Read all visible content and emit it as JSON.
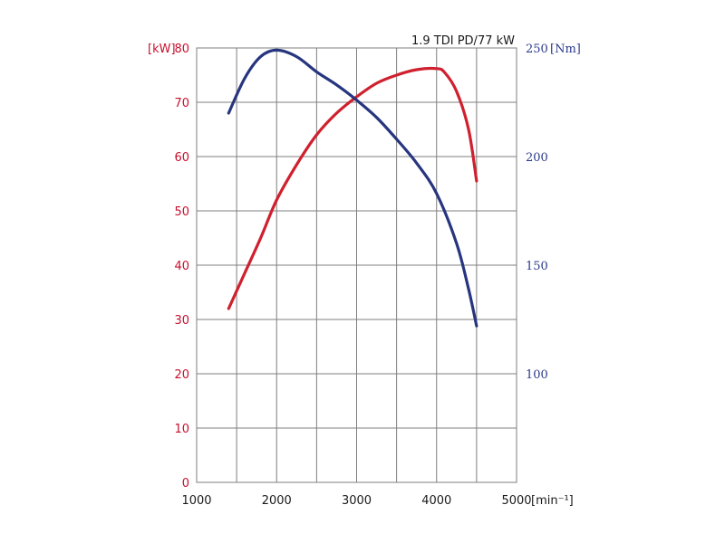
{
  "chart_data": {
    "type": "line",
    "title": "1.9 TDI PD/77 kW",
    "xlabel": "",
    "x_unit": "[min⁻¹]",
    "xlim": [
      1000,
      5000
    ],
    "x_ticks": [
      "1000",
      "2000",
      "3000",
      "4000",
      "5000"
    ],
    "ylim": [
      0,
      80
    ],
    "y_unit": "[kW]",
    "y_ticks": [
      "0",
      "10",
      "20",
      "30",
      "40",
      "50",
      "60",
      "70",
      "80"
    ],
    "y2lim": [
      50,
      250
    ],
    "y2_unit": "[Nm]",
    "y2_ticks": [
      "100",
      "150",
      "200",
      "250"
    ],
    "grid": true,
    "series": [
      {
        "color": "#d0202e",
        "axis": "left",
        "points": [
          [
            1400,
            32
          ],
          [
            1600,
            38.5
          ],
          [
            1800,
            45
          ],
          [
            2000,
            52
          ],
          [
            2250,
            58.5
          ],
          [
            2500,
            64
          ],
          [
            2750,
            68
          ],
          [
            3000,
            71
          ],
          [
            3250,
            73.5
          ],
          [
            3500,
            75
          ],
          [
            3750,
            76
          ],
          [
            4000,
            76.2
          ],
          [
            4100,
            75.5
          ],
          [
            4250,
            72
          ],
          [
            4400,
            65
          ],
          [
            4500,
            55.5
          ]
        ]
      },
      {
        "color": "#27357f",
        "axis": "right",
        "points": [
          [
            1400,
            220
          ],
          [
            1600,
            236
          ],
          [
            1800,
            246
          ],
          [
            2000,
            249
          ],
          [
            2250,
            246
          ],
          [
            2500,
            239
          ],
          [
            2750,
            233
          ],
          [
            3000,
            226
          ],
          [
            3250,
            218
          ],
          [
            3500,
            208
          ],
          [
            3750,
            197
          ],
          [
            4000,
            183
          ],
          [
            4250,
            160
          ],
          [
            4400,
            139
          ],
          [
            4500,
            122
          ]
        ]
      }
    ]
  }
}
